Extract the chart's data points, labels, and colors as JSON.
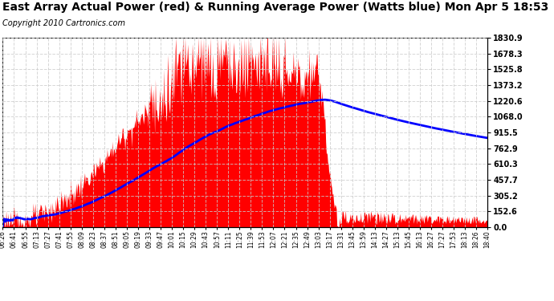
{
  "title": "East Array Actual Power (red) & Running Average Power (Watts blue) Mon Apr 5 18:53",
  "copyright": "Copyright 2010 Cartronics.com",
  "ymin": 0.0,
  "ymax": 1830.9,
  "yticks": [
    0.0,
    152.6,
    305.2,
    457.7,
    610.3,
    762.9,
    915.5,
    1068.0,
    1220.6,
    1373.2,
    1525.8,
    1678.3,
    1830.9
  ],
  "xtick_labels": [
    "06:26",
    "06:41",
    "06:55",
    "07:13",
    "07:27",
    "07:41",
    "07:55",
    "08:09",
    "08:23",
    "08:37",
    "08:51",
    "09:05",
    "09:19",
    "09:33",
    "09:47",
    "10:01",
    "10:15",
    "10:29",
    "10:43",
    "10:57",
    "11:11",
    "11:25",
    "11:39",
    "11:53",
    "12:07",
    "12:21",
    "12:35",
    "12:49",
    "13:03",
    "13:17",
    "13:31",
    "13:45",
    "13:59",
    "14:13",
    "14:27",
    "15:13",
    "15:45",
    "16:13",
    "16:27",
    "17:27",
    "17:53",
    "18:13",
    "18:26",
    "18:40"
  ],
  "bg_color": "#ffffff",
  "plot_bg_color": "#ffffff",
  "grid_color": "#cccccc",
  "actual_color": "#ff0000",
  "avg_color": "#0000ff",
  "title_fontsize": 10,
  "copyright_fontsize": 7,
  "avg_linewidth": 2.0
}
